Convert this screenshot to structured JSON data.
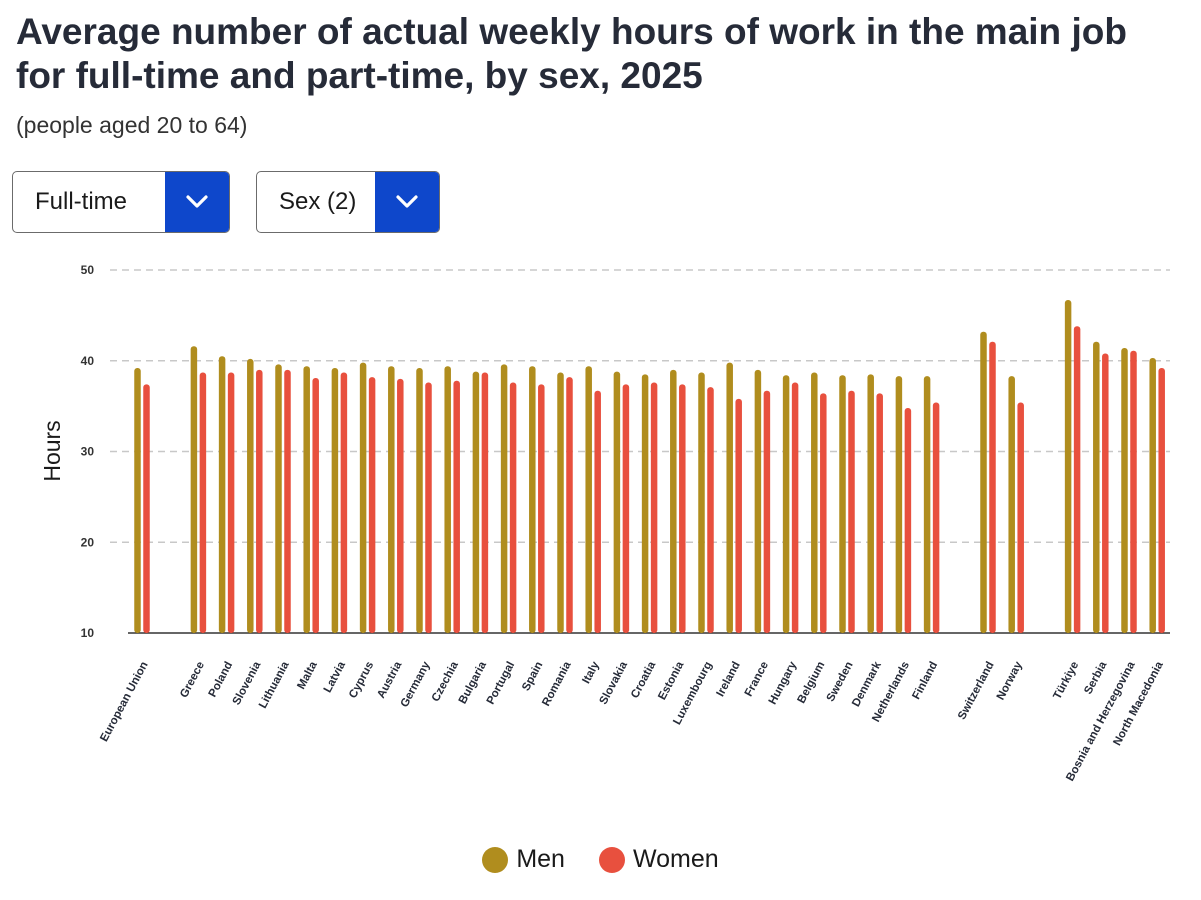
{
  "header": {
    "title": "Average number of actual weekly hours of work in the main job for full-time and part-time, by sex, 2025",
    "subtitle": "(people aged 20 to 64)"
  },
  "filters": {
    "worktime": {
      "selected": "Full-time"
    },
    "sex": {
      "selected": "Sex (2)"
    }
  },
  "icons": {
    "dropdown": "chevron-down-icon"
  },
  "colors": {
    "men": "#b08d1e",
    "women": "#e8503e",
    "accent": "#0e47cb"
  },
  "chart_data": {
    "type": "bar",
    "title": "",
    "xlabel": "",
    "ylabel": "Hours",
    "ylim": [
      10,
      50
    ],
    "yticks": [
      10,
      20,
      30,
      40,
      50
    ],
    "grid": true,
    "legend_position": "bottom",
    "groups": [
      [
        "European Union"
      ],
      [
        "Greece",
        "Poland",
        "Slovenia",
        "Lithuania",
        "Malta",
        "Latvia",
        "Cyprus",
        "Austria",
        "Germany",
        "Czechia",
        "Bulgaria",
        "Portugal",
        "Spain",
        "Romania",
        "Italy",
        "Slovakia",
        "Croatia",
        "Estonia",
        "Luxembourg",
        "Ireland",
        "France",
        "Hungary",
        "Belgium",
        "Sweden",
        "Denmark",
        "Netherlands",
        "Finland"
      ],
      [
        "Switzerland",
        "Norway"
      ],
      [
        "Türkiye",
        "Serbia",
        "Bosnia and Herzegovina",
        "North Macedonia"
      ]
    ],
    "categories": [
      "European Union",
      "Greece",
      "Poland",
      "Slovenia",
      "Lithuania",
      "Malta",
      "Latvia",
      "Cyprus",
      "Austria",
      "Germany",
      "Czechia",
      "Bulgaria",
      "Portugal",
      "Spain",
      "Romania",
      "Italy",
      "Slovakia",
      "Croatia",
      "Estonia",
      "Luxembourg",
      "Ireland",
      "France",
      "Hungary",
      "Belgium",
      "Sweden",
      "Denmark",
      "Netherlands",
      "Finland",
      "Switzerland",
      "Norway",
      "Türkiye",
      "Serbia",
      "Bosnia and Herzegovina",
      "North Macedonia"
    ],
    "series": [
      {
        "name": "Men",
        "values": [
          39.2,
          41.6,
          40.5,
          40.2,
          39.6,
          39.4,
          39.2,
          39.8,
          39.4,
          39.2,
          39.4,
          38.8,
          39.6,
          39.4,
          38.7,
          39.4,
          38.8,
          38.5,
          39.0,
          38.7,
          39.8,
          39.0,
          38.4,
          38.7,
          38.4,
          38.5,
          38.3,
          38.3,
          43.2,
          38.3,
          46.7,
          42.1,
          41.4,
          40.3
        ]
      },
      {
        "name": "Women",
        "values": [
          37.4,
          38.7,
          38.7,
          39.0,
          39.0,
          38.1,
          38.7,
          38.2,
          38.0,
          37.6,
          37.8,
          38.7,
          37.6,
          37.4,
          38.2,
          36.7,
          37.4,
          37.6,
          37.4,
          37.1,
          35.8,
          36.7,
          37.6,
          36.4,
          36.7,
          36.4,
          34.8,
          35.4,
          42.1,
          35.4,
          43.8,
          40.8,
          41.1,
          39.2
        ]
      }
    ]
  }
}
